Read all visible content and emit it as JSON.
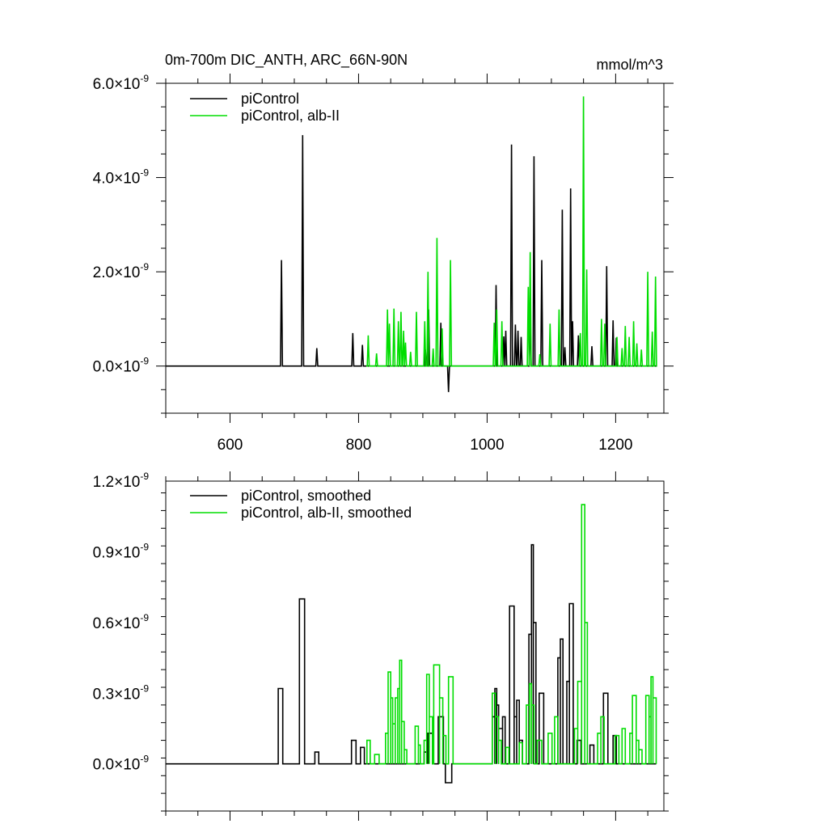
{
  "chart_data": [
    {
      "type": "line",
      "title": "0m-700m DIC_ANTH, ARC_66N-90N",
      "units": "mmol/m^3",
      "xlim": [
        500,
        1275
      ],
      "ylim": [
        -1e-09,
        6e-09
      ],
      "x_ticks": [
        {
          "value": 600,
          "label": "600"
        },
        {
          "value": 800,
          "label": "800"
        },
        {
          "value": 1000,
          "label": "1000"
        },
        {
          "value": 1200,
          "label": "1200"
        }
      ],
      "y_ticks": [
        {
          "value": 0.0,
          "label": "0.0",
          "exp": "-9"
        },
        {
          "value": 2e-09,
          "label": "2.0",
          "exp": "-9"
        },
        {
          "value": 4e-09,
          "label": "4.0",
          "exp": "-9"
        },
        {
          "value": 6e-09,
          "label": "6.0",
          "exp": "-9"
        }
      ],
      "series": [
        {
          "name": "piControl",
          "color": "#000000",
          "spikes": [
            [
              680,
              2.25e-09
            ],
            [
              713,
              4.9e-09
            ],
            [
              735,
              3.8e-10
            ],
            [
              791,
              7e-10
            ],
            [
              806,
              4.5e-10
            ],
            [
              904,
              3.5e-10
            ],
            [
              909,
              1.2e-09
            ],
            [
              928,
              9.2e-10
            ],
            [
              940,
              -5.5e-10
            ],
            [
              1014,
              1.72e-09
            ],
            [
              1026,
              6.3e-10
            ],
            [
              1029,
              7.5e-10
            ],
            [
              1038,
              4.7e-09
            ],
            [
              1044,
              8.8e-10
            ],
            [
              1048,
              7.5e-10
            ],
            [
              1053,
              6.2e-10
            ],
            [
              1067,
              1.15e-09
            ],
            [
              1073,
              4.45e-09
            ],
            [
              1085,
              2.25e-09
            ],
            [
              1117,
              3.32e-09
            ],
            [
              1121,
              4e-10
            ],
            [
              1130,
              3.77e-09
            ],
            [
              1133,
              9.5e-10
            ],
            [
              1142,
              6.5e-10
            ],
            [
              1163,
              4.2e-10
            ],
            [
              1186,
              2.12e-09
            ],
            [
              1196,
              9.7e-10
            ],
            [
              1201,
              6e-10
            ]
          ]
        },
        {
          "name": "piControl, alb-II",
          "color": "#00dd00",
          "start": 812,
          "spikes": [
            [
              815,
              6.5e-10
            ],
            [
              828,
              2.7e-10
            ],
            [
              845,
              1.2e-09
            ],
            [
              848,
              9e-10
            ],
            [
              855,
              1.22e-09
            ],
            [
              862,
              9.5e-10
            ],
            [
              866,
              1.15e-09
            ],
            [
              870,
              7.5e-10
            ],
            [
              873,
              5e-10
            ],
            [
              881,
              3e-10
            ],
            [
              890,
              1.15e-09
            ],
            [
              903,
              9.5e-10
            ],
            [
              908,
              2e-09
            ],
            [
              916,
              3.7e-10
            ],
            [
              922,
              2.72e-09
            ],
            [
              930,
              8e-10
            ],
            [
              943,
              2.25e-09
            ],
            [
              1011,
              9.2e-10
            ],
            [
              1015,
              1.2e-09
            ],
            [
              1023,
              9.5e-10
            ],
            [
              1064,
              1.68e-09
            ],
            [
              1067,
              2.42e-09
            ],
            [
              1082,
              2.5e-10
            ],
            [
              1098,
              9e-10
            ],
            [
              1112,
              1.2e-09
            ],
            [
              1145,
              7e-10
            ],
            [
              1150,
              5.72e-09
            ],
            [
              1155,
              2.05e-09
            ],
            [
              1178,
              1e-09
            ],
            [
              1183,
              9e-10
            ],
            [
              1202,
              6.2e-10
            ],
            [
              1210,
              3.8e-10
            ],
            [
              1215,
              8.5e-10
            ],
            [
              1221,
              6.2e-10
            ],
            [
              1228,
              9.5e-10
            ],
            [
              1233,
              4.8e-10
            ],
            [
              1240,
              3.5e-10
            ],
            [
              1250,
              2e-09
            ],
            [
              1257,
              7.3e-10
            ],
            [
              1262,
              1.9e-09
            ]
          ]
        }
      ]
    },
    {
      "type": "line",
      "title": "",
      "xlim": [
        500,
        1275
      ],
      "ylim": [
        -2e-10,
        1.2e-09
      ],
      "x_ticks": [
        {
          "value": 600,
          "label": ""
        },
        {
          "value": 800,
          "label": ""
        },
        {
          "value": 1000,
          "label": ""
        },
        {
          "value": 1200,
          "label": ""
        }
      ],
      "y_ticks": [
        {
          "value": 0.0,
          "label": "0.0",
          "exp": "-9"
        },
        {
          "value": 3e-10,
          "label": "0.3",
          "exp": "-9"
        },
        {
          "value": 6e-10,
          "label": "0.6",
          "exp": "-9"
        },
        {
          "value": 9e-10,
          "label": "0.9",
          "exp": "-9"
        },
        {
          "value": 1.2e-09,
          "label": "1.2",
          "exp": "-9"
        }
      ],
      "series": [
        {
          "name": "piControl, smoothed",
          "color": "#000000",
          "blocks": [
            [
              675,
              682,
              3.2e-10
            ],
            [
              708,
              716,
              7e-10
            ],
            [
              732,
              738,
              5e-11
            ],
            [
              789,
              796,
              1e-10
            ],
            [
              803,
              809,
              7e-11
            ],
            [
              902,
              908,
              5e-11
            ],
            [
              908,
              915,
              1.3e-10
            ],
            [
              924,
              932,
              2e-10
            ],
            [
              935,
              945,
              -8e-11
            ],
            [
              1008,
              1012,
              2e-10
            ],
            [
              1012,
              1015,
              3.2e-10
            ],
            [
              1015,
              1018,
              2.5e-10
            ],
            [
              1018,
              1024,
              1.5e-10
            ],
            [
              1024,
              1028,
              2e-10
            ],
            [
              1035,
              1042,
              6.7e-10
            ],
            [
              1042,
              1046,
              2e-10
            ],
            [
              1046,
              1050,
              2.7e-10
            ],
            [
              1050,
              1055,
              1e-10
            ],
            [
              1065,
              1069,
              5.5e-10
            ],
            [
              1069,
              1072,
              9.3e-10
            ],
            [
              1072,
              1076,
              6e-10
            ],
            [
              1081,
              1088,
              3e-10
            ],
            [
              1110,
              1114,
              4.5e-10
            ],
            [
              1114,
              1118,
              5.3e-10
            ],
            [
              1124,
              1128,
              3.5e-10
            ],
            [
              1128,
              1134,
              6.8e-10
            ],
            [
              1140,
              1146,
              1e-10
            ],
            [
              1160,
              1166,
              8e-11
            ],
            [
              1181,
              1188,
              3e-10
            ],
            [
              1196,
              1201,
              1.2e-10
            ]
          ]
        },
        {
          "name": "piControl, alb-II, smoothed",
          "color": "#00dd00",
          "start": 812,
          "blocks": [
            [
              813,
              818,
              1e-10
            ],
            [
              825,
              832,
              4e-11
            ],
            [
              842,
              846,
              1.3e-10
            ],
            [
              846,
              850,
              3.9e-10
            ],
            [
              850,
              853,
              2.8e-10
            ],
            [
              853,
              857,
              1.7e-10
            ],
            [
              857,
              861,
              2.8e-10
            ],
            [
              861,
              864,
              3.2e-10
            ],
            [
              864,
              867,
              4.4e-10
            ],
            [
              867,
              871,
              1.8e-10
            ],
            [
              871,
              875,
              6e-11
            ],
            [
              888,
              893,
              1.6e-10
            ],
            [
              893,
              896,
              8e-11
            ],
            [
              902,
              906,
              1e-10
            ],
            [
              906,
              910,
              3.8e-10
            ],
            [
              910,
              915,
              2e-10
            ],
            [
              917,
              926,
              4.2e-10
            ],
            [
              926,
              931,
              2.8e-10
            ],
            [
              931,
              936,
              1.2e-10
            ],
            [
              940,
              947,
              3.7e-10
            ],
            [
              1008,
              1013,
              3e-10
            ],
            [
              1013,
              1018,
              2e-10
            ],
            [
              1018,
              1022,
              1e-10
            ],
            [
              1029,
              1034,
              7e-11
            ],
            [
              1050,
              1055,
              9e-11
            ],
            [
              1061,
              1066,
              2.5e-10
            ],
            [
              1066,
              1069,
              3.4e-10
            ],
            [
              1069,
              1073,
              2.5e-10
            ],
            [
              1078,
              1085,
              1e-10
            ],
            [
              1095,
              1101,
              1.3e-10
            ],
            [
              1105,
              1110,
              2e-10
            ],
            [
              1136,
              1141,
              1.5e-10
            ],
            [
              1141,
              1147,
              3.5e-10
            ],
            [
              1147,
              1152,
              1.1e-09
            ],
            [
              1152,
              1156,
              6e-10
            ],
            [
              1172,
              1177,
              1.3e-10
            ],
            [
              1177,
              1182,
              2e-10
            ],
            [
              1199,
              1205,
              1.2e-10
            ],
            [
              1210,
              1215,
              1.5e-10
            ],
            [
              1222,
              1226,
              1.3e-10
            ],
            [
              1226,
              1232,
              2.9e-10
            ],
            [
              1232,
              1236,
              1e-10
            ],
            [
              1236,
              1241,
              6e-11
            ],
            [
              1247,
              1252,
              2.9e-10
            ],
            [
              1252,
              1255,
              2e-10
            ],
            [
              1255,
              1258,
              3.7e-10
            ],
            [
              1258,
              1263,
              2.8e-10
            ]
          ]
        }
      ]
    }
  ]
}
